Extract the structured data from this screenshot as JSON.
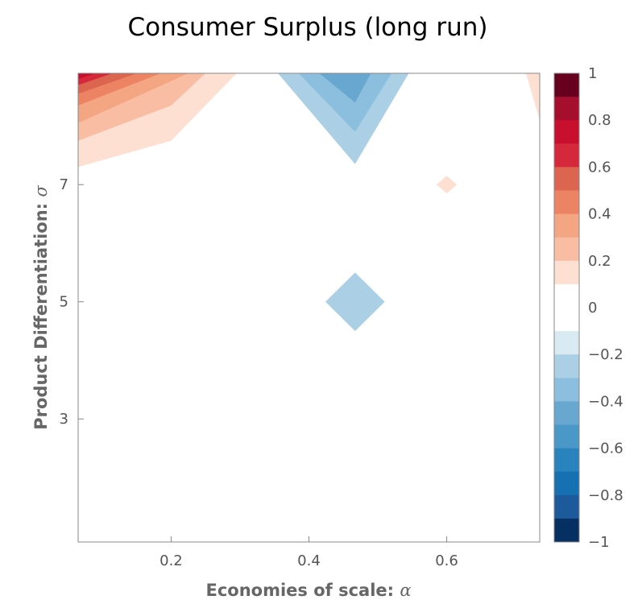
{
  "chart_data": {
    "type": "heatmap",
    "title": "Consumer Surplus (long run)",
    "xlabel": "Economies of scale: ",
    "xlabel_symbol": "α",
    "ylabel": "Product Differentiation: ",
    "ylabel_symbol": "σ",
    "xlim": [
      0.065,
      0.735
    ],
    "ylim": [
      0.9,
      8.9
    ],
    "x_ticks": [
      {
        "value": 0.2,
        "label": "0.2"
      },
      {
        "value": 0.4,
        "label": "0.4"
      },
      {
        "value": 0.6,
        "label": "0.6"
      }
    ],
    "y_ticks": [
      {
        "value": 3,
        "label": "3"
      },
      {
        "value": 5,
        "label": "5"
      },
      {
        "value": 7,
        "label": "7"
      }
    ],
    "colorbar": {
      "range": [
        -1,
        1
      ],
      "levels": [
        {
          "from": 0.9,
          "to": 1.0,
          "color": "#67001f"
        },
        {
          "from": 0.8,
          "to": 0.9,
          "color": "#a50f2d"
        },
        {
          "from": 0.7,
          "to": 0.8,
          "color": "#c8102e"
        },
        {
          "from": 0.6,
          "to": 0.7,
          "color": "#d6283b"
        },
        {
          "from": 0.5,
          "to": 0.6,
          "color": "#dc6550"
        },
        {
          "from": 0.4,
          "to": 0.5,
          "color": "#ec8463"
        },
        {
          "from": 0.3,
          "to": 0.4,
          "color": "#f4a582"
        },
        {
          "from": 0.2,
          "to": 0.3,
          "color": "#f8bda2"
        },
        {
          "from": 0.1,
          "to": 0.2,
          "color": "#fde0d2"
        },
        {
          "from": -0.1,
          "to": 0.1,
          "color": "#ffffff"
        },
        {
          "from": -0.2,
          "to": -0.1,
          "color": "#d9eaf3"
        },
        {
          "from": -0.3,
          "to": -0.2,
          "color": "#abd0e6"
        },
        {
          "from": -0.4,
          "to": -0.3,
          "color": "#8cbfdd"
        },
        {
          "from": -0.5,
          "to": -0.4,
          "color": "#67a7d0"
        },
        {
          "from": -0.6,
          "to": -0.5,
          "color": "#4a98c8"
        },
        {
          "from": -0.7,
          "to": -0.6,
          "color": "#2a83bd"
        },
        {
          "from": -0.8,
          "to": -0.7,
          "color": "#1670b1"
        },
        {
          "from": -0.9,
          "to": -0.8,
          "color": "#1c5a9c"
        },
        {
          "from": -1.0,
          "to": -0.9,
          "color": "#053061"
        }
      ],
      "ticks": [
        {
          "value": 1,
          "label": "1"
        },
        {
          "value": 0.8,
          "label": "0.8"
        },
        {
          "value": 0.6,
          "label": "0.6"
        },
        {
          "value": 0.4,
          "label": "0.4"
        },
        {
          "value": 0.2,
          "label": "0.2"
        },
        {
          "value": 0,
          "label": "0"
        },
        {
          "value": -0.2,
          "label": "−0.2"
        },
        {
          "value": -0.4,
          "label": "−0.4"
        },
        {
          "value": -0.6,
          "label": "−0.6"
        },
        {
          "value": -0.8,
          "label": "−0.8"
        },
        {
          "value": -1,
          "label": "−1"
        }
      ]
    },
    "regions": [
      {
        "level": 0.15,
        "color": "#fde0d2",
        "points": [
          [
            0.065,
            8.9
          ],
          [
            0.295,
            8.9
          ],
          [
            0.2,
            7.75
          ],
          [
            0.065,
            7.3
          ]
        ]
      },
      {
        "level": 0.25,
        "color": "#f8bda2",
        "points": [
          [
            0.065,
            8.9
          ],
          [
            0.25,
            8.9
          ],
          [
            0.2,
            8.35
          ],
          [
            0.065,
            7.75
          ]
        ]
      },
      {
        "level": 0.35,
        "color": "#f4a582",
        "points": [
          [
            0.065,
            8.9
          ],
          [
            0.225,
            8.9
          ],
          [
            0.065,
            8.05
          ]
        ]
      },
      {
        "level": 0.45,
        "color": "#ec8463",
        "points": [
          [
            0.065,
            8.9
          ],
          [
            0.185,
            8.9
          ],
          [
            0.065,
            8.35
          ]
        ]
      },
      {
        "level": 0.55,
        "color": "#dc6550",
        "points": [
          [
            0.065,
            8.9
          ],
          [
            0.15,
            8.9
          ],
          [
            0.065,
            8.55
          ]
        ]
      },
      {
        "level": 0.65,
        "color": "#d6283b",
        "points": [
          [
            0.065,
            8.9
          ],
          [
            0.115,
            8.9
          ],
          [
            0.065,
            8.7
          ]
        ]
      },
      {
        "level": 0.75,
        "color": "#c8102e",
        "points": [
          [
            0.065,
            8.9
          ],
          [
            0.09,
            8.9
          ],
          [
            0.065,
            8.8
          ]
        ]
      },
      {
        "level": 0.15,
        "color": "#fde0d2",
        "points": [
          [
            0.715,
            8.9
          ],
          [
            0.735,
            8.9
          ],
          [
            0.735,
            8.1
          ]
        ]
      },
      {
        "level": 0.15,
        "color": "#fde0d2",
        "points": [
          [
            0.6,
            7.15
          ],
          [
            0.615,
            7.0
          ],
          [
            0.6,
            6.85
          ],
          [
            0.585,
            7.0
          ]
        ]
      },
      {
        "level": -0.25,
        "color": "#abd0e6",
        "points": [
          [
            0.355,
            8.9
          ],
          [
            0.545,
            8.9
          ],
          [
            0.467,
            7.35
          ]
        ]
      },
      {
        "level": -0.35,
        "color": "#8cbfdd",
        "points": [
          [
            0.385,
            8.9
          ],
          [
            0.52,
            8.9
          ],
          [
            0.467,
            7.9
          ]
        ]
      },
      {
        "level": -0.45,
        "color": "#67a7d0",
        "points": [
          [
            0.415,
            8.9
          ],
          [
            0.49,
            8.9
          ],
          [
            0.467,
            8.4
          ]
        ]
      },
      {
        "level": -0.25,
        "color": "#abd0e6",
        "points": [
          [
            0.467,
            5.5
          ],
          [
            0.51,
            5.0
          ],
          [
            0.467,
            4.5
          ],
          [
            0.424,
            5.0
          ]
        ]
      }
    ]
  }
}
